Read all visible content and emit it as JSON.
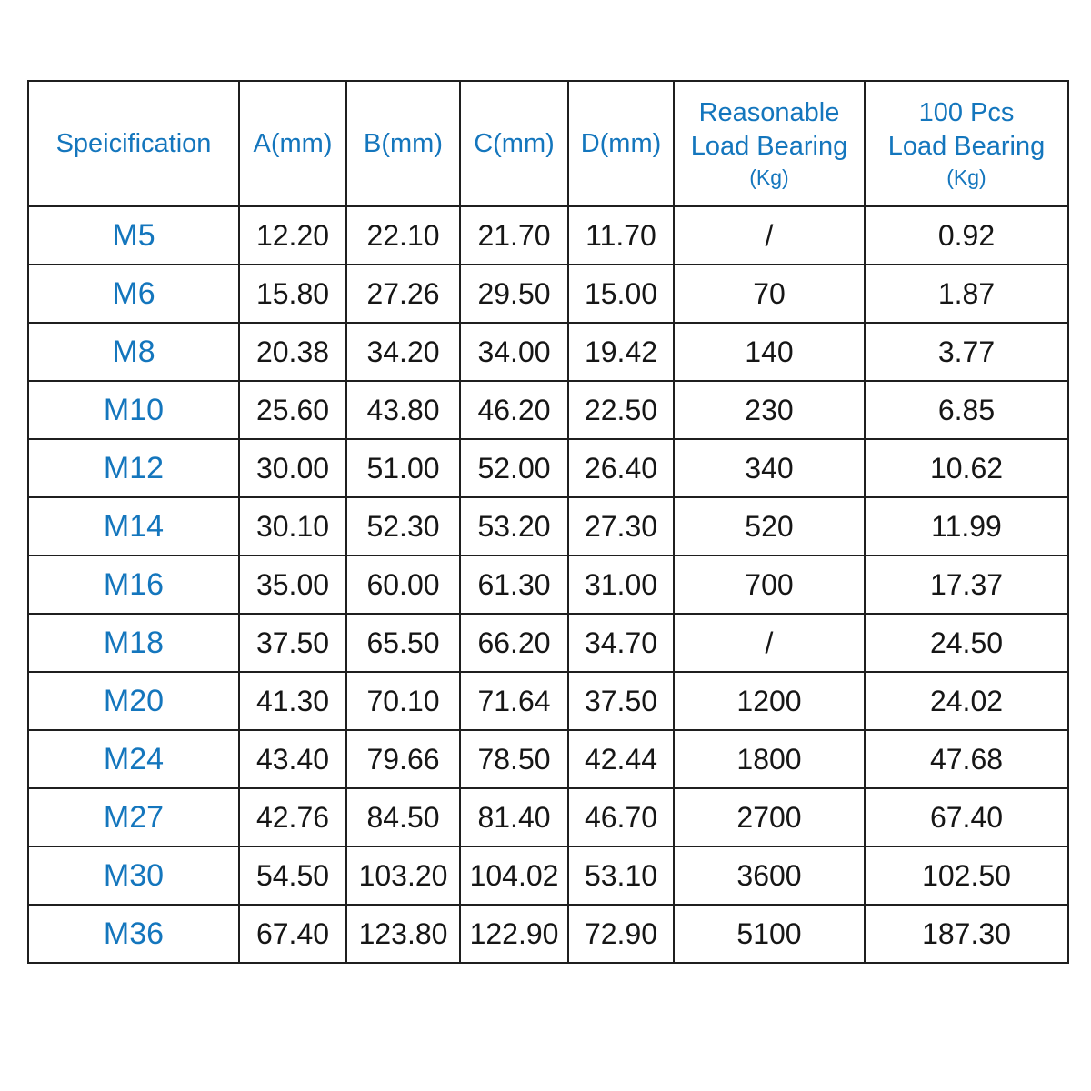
{
  "accent_color": "#1476BD",
  "text_color": "#161616",
  "border_color": "#1f1f1f",
  "table": {
    "columns": [
      {
        "key": "spec",
        "label_lines": [
          "Speicification"
        ],
        "sub": ""
      },
      {
        "key": "a",
        "label_lines": [
          "A(mm)"
        ],
        "sub": ""
      },
      {
        "key": "b",
        "label_lines": [
          "B(mm)"
        ],
        "sub": ""
      },
      {
        "key": "c",
        "label_lines": [
          "C(mm)"
        ],
        "sub": ""
      },
      {
        "key": "d",
        "label_lines": [
          "D(mm)"
        ],
        "sub": ""
      },
      {
        "key": "reasonable",
        "label_lines": [
          "Reasonable",
          "Load Bearing"
        ],
        "sub": "(Kg)"
      },
      {
        "key": "pcs100",
        "label_lines": [
          "100 Pcs",
          "Load Bearing"
        ],
        "sub": "(Kg)"
      }
    ],
    "rows": [
      {
        "spec": "M5",
        "a": "12.20",
        "b": "22.10",
        "c": "21.70",
        "d": "11.70",
        "reasonable": "/",
        "pcs100": "0.92"
      },
      {
        "spec": "M6",
        "a": "15.80",
        "b": "27.26",
        "c": "29.50",
        "d": "15.00",
        "reasonable": "70",
        "pcs100": "1.87"
      },
      {
        "spec": "M8",
        "a": "20.38",
        "b": "34.20",
        "c": "34.00",
        "d": "19.42",
        "reasonable": "140",
        "pcs100": "3.77"
      },
      {
        "spec": "M10",
        "a": "25.60",
        "b": "43.80",
        "c": "46.20",
        "d": "22.50",
        "reasonable": "230",
        "pcs100": "6.85"
      },
      {
        "spec": "M12",
        "a": "30.00",
        "b": "51.00",
        "c": "52.00",
        "d": "26.40",
        "reasonable": "340",
        "pcs100": "10.62"
      },
      {
        "spec": "M14",
        "a": "30.10",
        "b": "52.30",
        "c": "53.20",
        "d": "27.30",
        "reasonable": "520",
        "pcs100": "11.99"
      },
      {
        "spec": "M16",
        "a": "35.00",
        "b": "60.00",
        "c": "61.30",
        "d": "31.00",
        "reasonable": "700",
        "pcs100": "17.37"
      },
      {
        "spec": "M18",
        "a": "37.50",
        "b": "65.50",
        "c": "66.20",
        "d": "34.70",
        "reasonable": "/",
        "pcs100": "24.50"
      },
      {
        "spec": "M20",
        "a": "41.30",
        "b": "70.10",
        "c": "71.64",
        "d": "37.50",
        "reasonable": "1200",
        "pcs100": "24.02"
      },
      {
        "spec": "M24",
        "a": "43.40",
        "b": "79.66",
        "c": "78.50",
        "d": "42.44",
        "reasonable": "1800",
        "pcs100": "47.68"
      },
      {
        "spec": "M27",
        "a": "42.76",
        "b": "84.50",
        "c": "81.40",
        "d": "46.70",
        "reasonable": "2700",
        "pcs100": "67.40"
      },
      {
        "spec": "M30",
        "a": "54.50",
        "b": "103.20",
        "c": "104.02",
        "d": "53.10",
        "reasonable": "3600",
        "pcs100": "102.50"
      },
      {
        "spec": "M36",
        "a": "67.40",
        "b": "123.80",
        "c": "122.90",
        "d": "72.90",
        "reasonable": "5100",
        "pcs100": "187.30"
      }
    ]
  }
}
